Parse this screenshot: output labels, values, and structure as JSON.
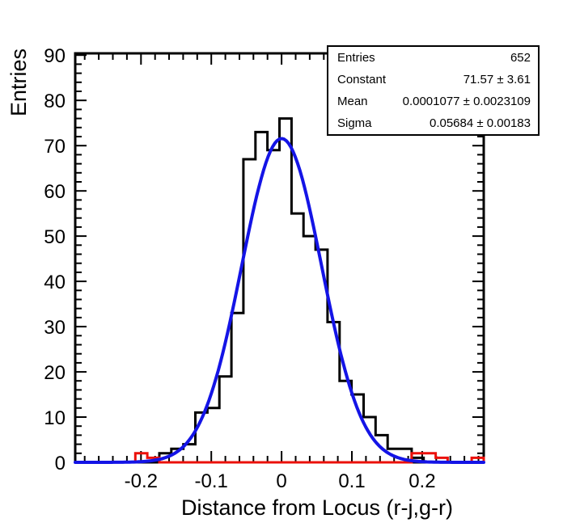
{
  "chart_data": {
    "type": "bar",
    "subtype": "root-histogram-with-gaussian-fit",
    "title": "",
    "xlabel": "Distance from Locus (r-j,g-r)",
    "ylabel": "Entries",
    "xlim": [
      -0.2935,
      0.2875
    ],
    "ylim": [
      0,
      90.4
    ],
    "grid": false,
    "legend_position": "none",
    "x_major_ticks": [
      -0.2,
      -0.1,
      0,
      0.1,
      0.2
    ],
    "x_minor_step": 0.02,
    "y_major_ticks": [
      0,
      10,
      20,
      30,
      40,
      50,
      60,
      70,
      80,
      90
    ],
    "y_minor_step": 2,
    "bin_start": -0.2935,
    "bin_width": 0.0170882,
    "n_bins": 34,
    "series": [
      {
        "name": "data-histogram",
        "color": "#000000",
        "values": [
          0,
          0,
          0,
          0,
          0,
          0,
          0,
          2,
          3,
          4,
          11,
          12,
          19,
          33,
          67,
          73,
          69,
          76,
          55,
          50,
          47,
          31,
          18,
          15,
          10,
          6,
          3,
          3,
          1,
          0,
          0,
          0,
          0,
          0
        ]
      },
      {
        "name": "outlier-histogram",
        "color": "#eb100a",
        "values": [
          0,
          0,
          0,
          0,
          0,
          2,
          1,
          0,
          0,
          0,
          0,
          0,
          0,
          0,
          0,
          0,
          0,
          0,
          0,
          0,
          0,
          0,
          0,
          0,
          0,
          0,
          0,
          0,
          2,
          2,
          1,
          0,
          0,
          1
        ]
      }
    ],
    "fit": {
      "type": "gaussian",
      "constant": 71.57,
      "mean": 0.0001077,
      "sigma": 0.05684,
      "color": "#1414e6"
    },
    "colors": {
      "frame": "#000000",
      "background": "#ffffff"
    }
  },
  "stats_box": {
    "rows": [
      {
        "label": "Entries",
        "value": "652"
      },
      {
        "label": "Constant",
        "value": "71.57 ± 3.61"
      },
      {
        "label": "Mean",
        "value": "0.0001077 ± 0.0023109"
      },
      {
        "label": "Sigma",
        "value": "0.05684 ± 0.00183"
      }
    ]
  }
}
